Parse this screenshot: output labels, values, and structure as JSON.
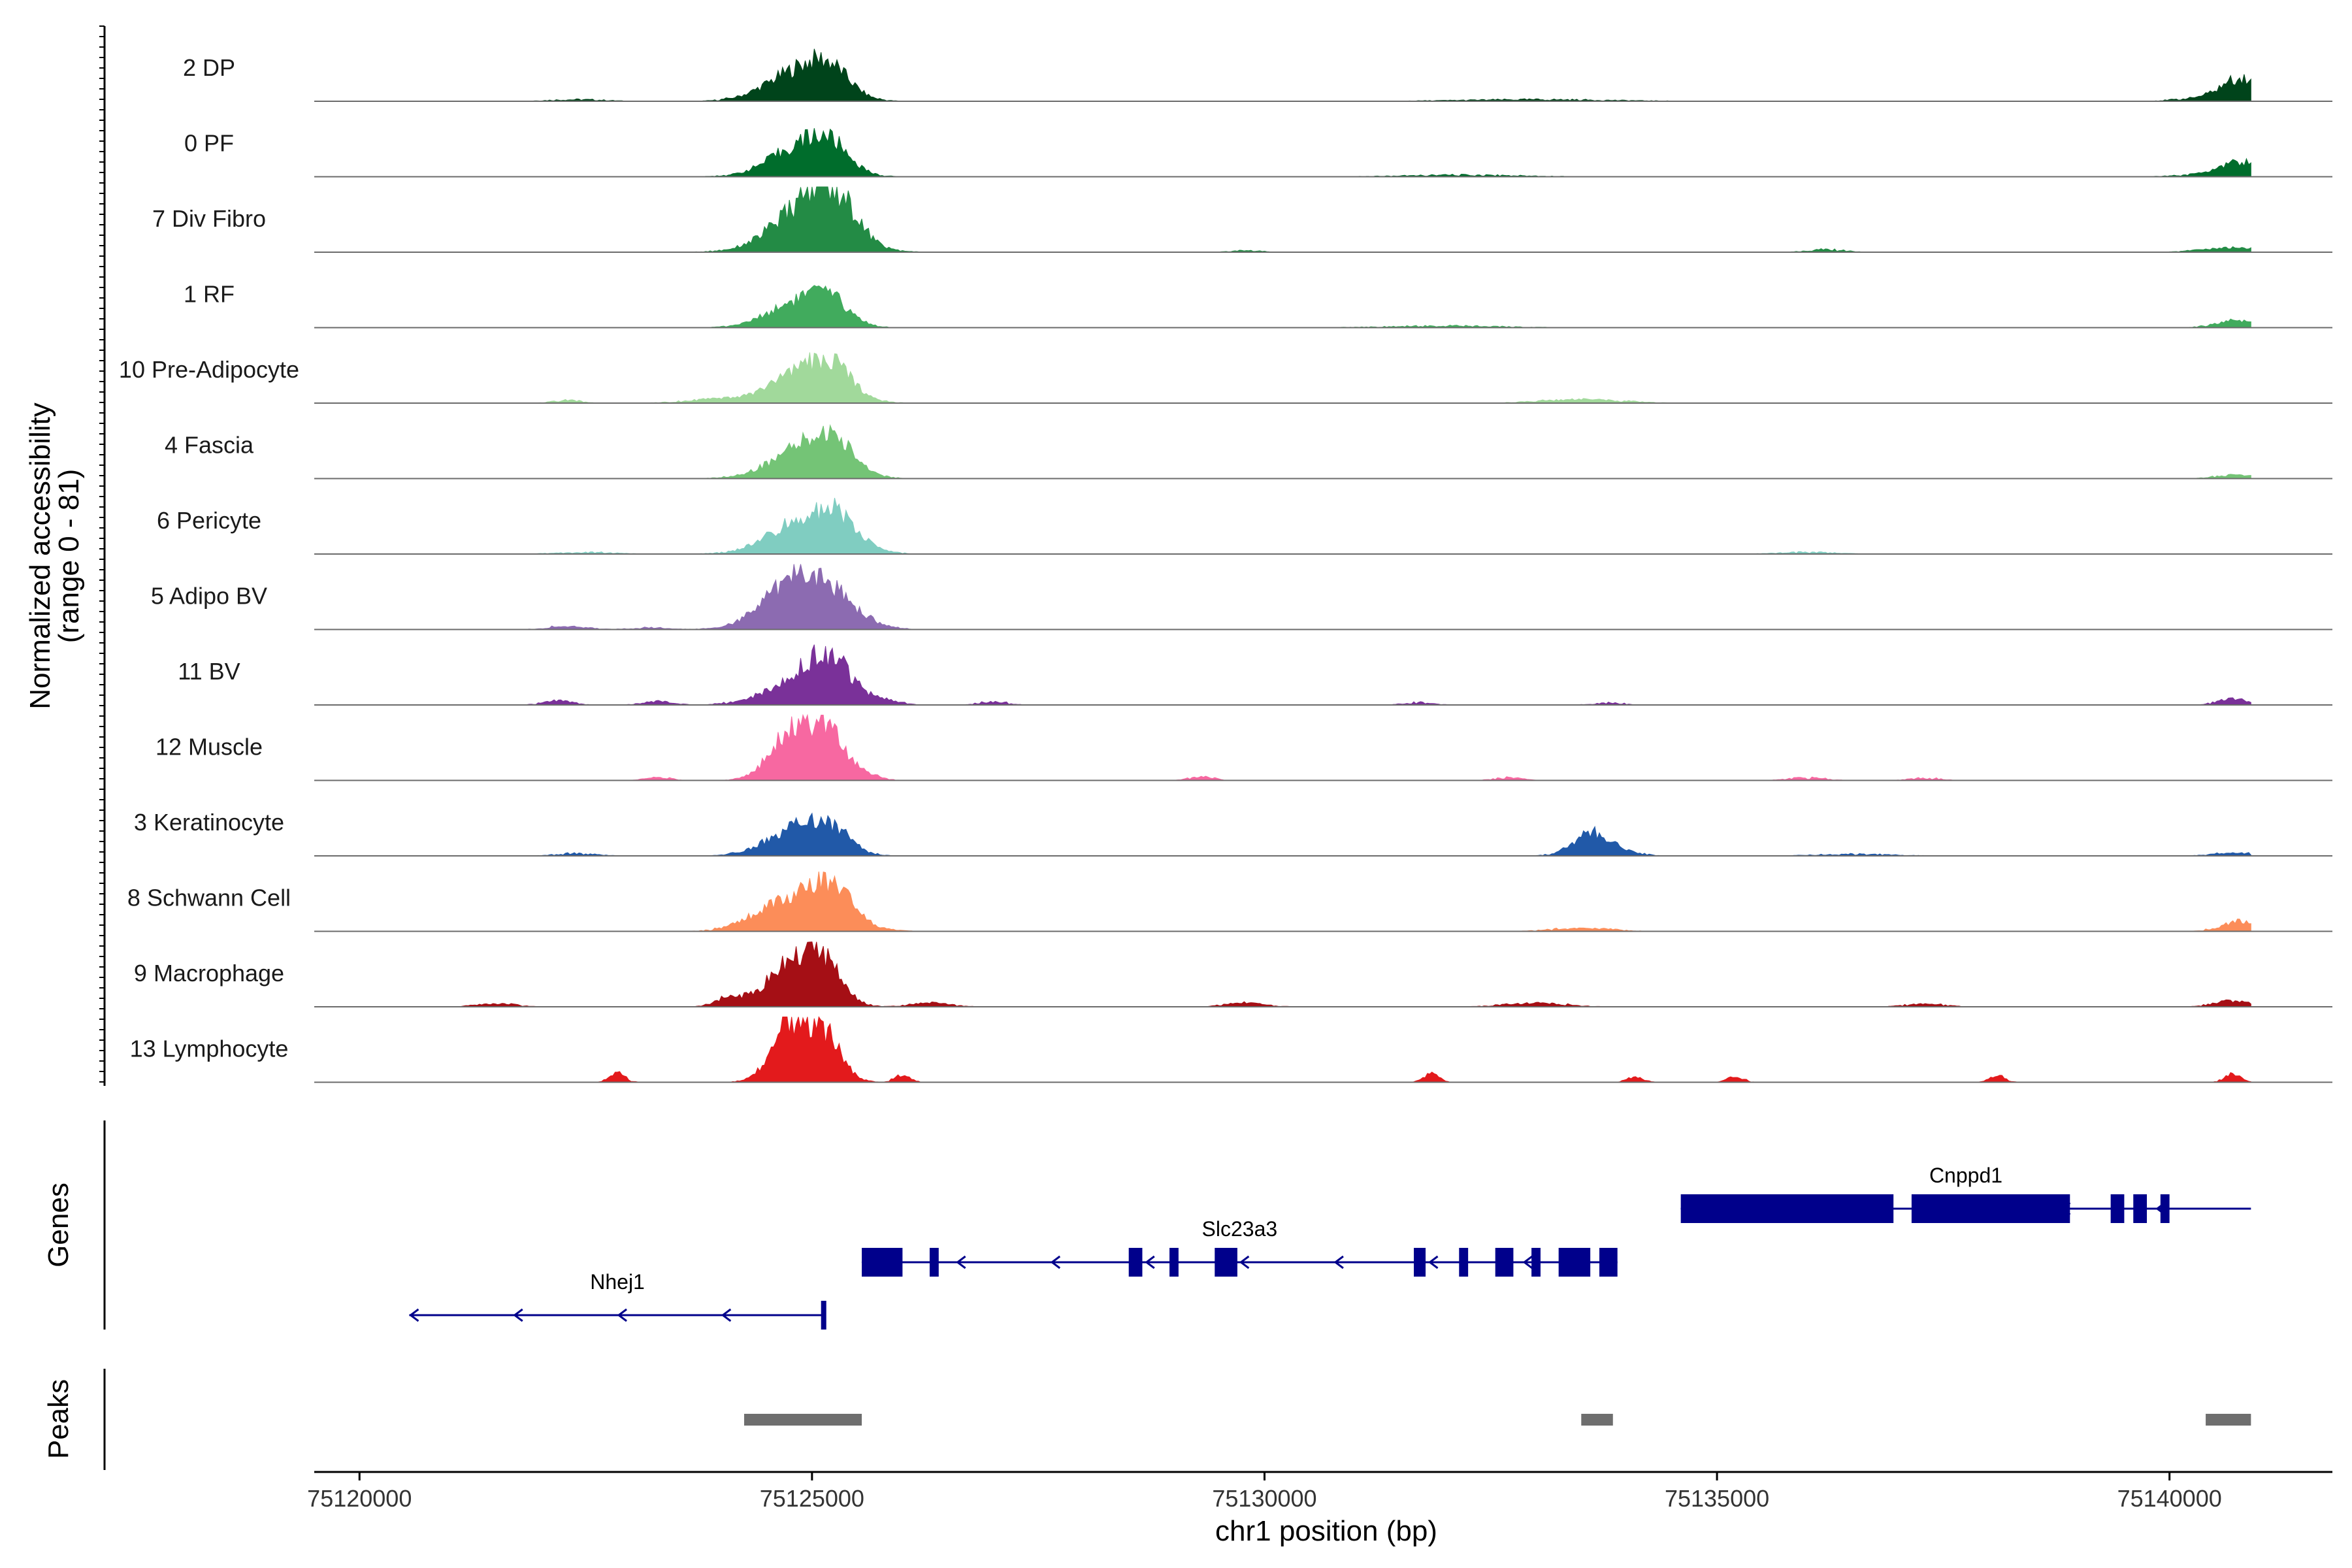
{
  "chart_data": {
    "type": "area",
    "title": "",
    "xlabel": "chr1 position (bp)",
    "ylabel": "Normalized accessibility (range 0 - 81)",
    "ylim": [
      0,
      81
    ],
    "xlim": [
      75119500,
      75141800
    ],
    "x_ticks": [
      75120000,
      75125000,
      75130000,
      75135000,
      75140000
    ],
    "x_tick_labels": [
      "75120000",
      "75125000",
      "75130000",
      "75135000",
      "75140000"
    ],
    "grid": false,
    "legend": "none",
    "tracks": [
      {
        "name": "2 DP",
        "color": "#00441b",
        "peaks": [
          [
            75124850,
            40,
            350
          ],
          [
            75125200,
            30,
            220
          ],
          [
            75122400,
            2,
            300
          ],
          [
            75140800,
            28,
            200
          ],
          [
            75140500,
            6,
            300
          ],
          [
            75133000,
            2,
            800
          ]
        ]
      },
      {
        "name": "0 PF",
        "color": "#006d2c",
        "peaks": [
          [
            75124850,
            38,
            330
          ],
          [
            75125200,
            32,
            220
          ],
          [
            75140800,
            18,
            220
          ],
          [
            75140500,
            4,
            300
          ],
          [
            75132200,
            2,
            600
          ]
        ]
      },
      {
        "name": "7 Div Fibro",
        "color": "#238b45",
        "peaks": [
          [
            75124950,
            60,
            380
          ],
          [
            75125250,
            46,
            240
          ],
          [
            75140700,
            6,
            300
          ],
          [
            75136200,
            3,
            200
          ],
          [
            75129800,
            2,
            150
          ]
        ]
      },
      {
        "name": "1 RF",
        "color": "#41ab5d",
        "peaks": [
          [
            75124850,
            34,
            330
          ],
          [
            75125200,
            26,
            220
          ],
          [
            75140750,
            10,
            220
          ],
          [
            75132000,
            2,
            600
          ]
        ]
      },
      {
        "name": "10 Pre-Adipocyte",
        "color": "#a1d99b",
        "peaks": [
          [
            75124900,
            42,
            350
          ],
          [
            75125250,
            30,
            220
          ],
          [
            75123900,
            5,
            300
          ],
          [
            75133500,
            5,
            400
          ],
          [
            75122300,
            3,
            150
          ]
        ]
      },
      {
        "name": "4 Fascia",
        "color": "#74c476",
        "peaks": [
          [
            75124900,
            40,
            350
          ],
          [
            75125250,
            34,
            220
          ],
          [
            75140750,
            5,
            200
          ],
          [
            75125500,
            2,
            200
          ]
        ]
      },
      {
        "name": "6 Pericyte",
        "color": "#80cdc1",
        "peaks": [
          [
            75124950,
            48,
            380
          ],
          [
            75125300,
            26,
            220
          ],
          [
            75122500,
            2,
            300
          ],
          [
            75136000,
            2,
            300
          ]
        ]
      },
      {
        "name": "5 Adipo BV",
        "color": "#8c6bb1",
        "peaks": [
          [
            75124850,
            68,
            360
          ],
          [
            75125250,
            24,
            300
          ],
          [
            75122300,
            4,
            200
          ],
          [
            75123200,
            2,
            200
          ]
        ]
      },
      {
        "name": "11 BV",
        "color": "#7a3199",
        "peaks": [
          [
            75124900,
            34,
            380
          ],
          [
            75125200,
            44,
            240
          ],
          [
            75122200,
            6,
            150
          ],
          [
            75123300,
            5,
            150
          ],
          [
            75125800,
            5,
            150
          ],
          [
            75127000,
            4,
            150
          ],
          [
            75140700,
            9,
            150
          ],
          [
            75131700,
            3,
            150
          ],
          [
            75133800,
            3,
            150
          ]
        ]
      },
      {
        "name": "12 Muscle",
        "color": "#f768a1",
        "peaks": [
          [
            75124800,
            66,
            250
          ],
          [
            75125200,
            56,
            200
          ],
          [
            75123300,
            4,
            120
          ],
          [
            75129300,
            5,
            120
          ],
          [
            75132700,
            3,
            150
          ],
          [
            75136000,
            3,
            200
          ],
          [
            75137300,
            3,
            150
          ],
          [
            75125650,
            6,
            120
          ]
        ]
      },
      {
        "name": "3 Keratinocyte",
        "color": "#2159a8",
        "peaks": [
          [
            75124800,
            36,
            300
          ],
          [
            75125200,
            32,
            220
          ],
          [
            75133600,
            30,
            200
          ],
          [
            75133900,
            6,
            200
          ],
          [
            75122400,
            3,
            200
          ],
          [
            75140700,
            4,
            200
          ],
          [
            75136500,
            2,
            400
          ]
        ]
      },
      {
        "name": "8 Schwann Cell",
        "color": "#fc8d59",
        "peaks": [
          [
            75124900,
            50,
            380
          ],
          [
            75125250,
            30,
            220
          ],
          [
            75140800,
            14,
            200
          ],
          [
            75124300,
            5,
            200
          ],
          [
            75133500,
            4,
            300
          ]
        ]
      },
      {
        "name": "9 Macrophage",
        "color": "#a50f15",
        "peaks": [
          [
            75124750,
            60,
            240
          ],
          [
            75125150,
            52,
            200
          ],
          [
            75124100,
            14,
            150
          ],
          [
            75121500,
            4,
            200
          ],
          [
            75129800,
            6,
            200
          ],
          [
            75133000,
            5,
            300
          ],
          [
            75140700,
            8,
            200
          ],
          [
            75137300,
            4,
            200
          ],
          [
            75126300,
            6,
            200
          ]
        ]
      },
      {
        "name": "13 Lymphocyte",
        "color": "#e31a1c",
        "peaks": [
          [
            75124750,
            78,
            200
          ],
          [
            75125150,
            60,
            180
          ],
          [
            75122850,
            14,
            80
          ],
          [
            75131850,
            12,
            80
          ],
          [
            75134100,
            8,
            80
          ],
          [
            75135200,
            8,
            80
          ],
          [
            75138100,
            10,
            80
          ],
          [
            75140700,
            12,
            80
          ],
          [
            75126000,
            10,
            80
          ]
        ]
      }
    ],
    "genes": [
      {
        "name": "Nhej1",
        "strand": "-",
        "start": 75120550,
        "end": 75125150,
        "row": 3,
        "exons": [
          [
            75125100,
            75125150
          ]
        ]
      },
      {
        "name": "Slc23a3",
        "strand": "-",
        "start": 75125550,
        "end": 75133900,
        "row": 2,
        "exons": [
          [
            75125550,
            75126000
          ],
          [
            75126300,
            75126400
          ],
          [
            75128500,
            75128650
          ],
          [
            75128950,
            75129050
          ],
          [
            75129450,
            75129700
          ],
          [
            75131650,
            75131780
          ],
          [
            75132150,
            75132250
          ],
          [
            75132550,
            75132750
          ],
          [
            75132950,
            75133050
          ],
          [
            75133250,
            75133600
          ],
          [
            75133700,
            75133900
          ]
        ]
      },
      {
        "name": "Cnppd1",
        "strand": "-",
        "start": 75134600,
        "end": 75140900,
        "row": 1,
        "exons": [
          [
            75134600,
            75136950
          ],
          [
            75137150,
            75138900
          ],
          [
            75139350,
            75139500
          ],
          [
            75139600,
            75139750
          ],
          [
            75139900,
            75140000
          ]
        ]
      }
    ],
    "peaks_track": [
      [
        75124250,
        75125550
      ],
      [
        75133500,
        75133850
      ],
      [
        75140400,
        75140900
      ]
    ],
    "track_labels": {
      "genes": "Genes",
      "peaks": "Peaks"
    }
  }
}
